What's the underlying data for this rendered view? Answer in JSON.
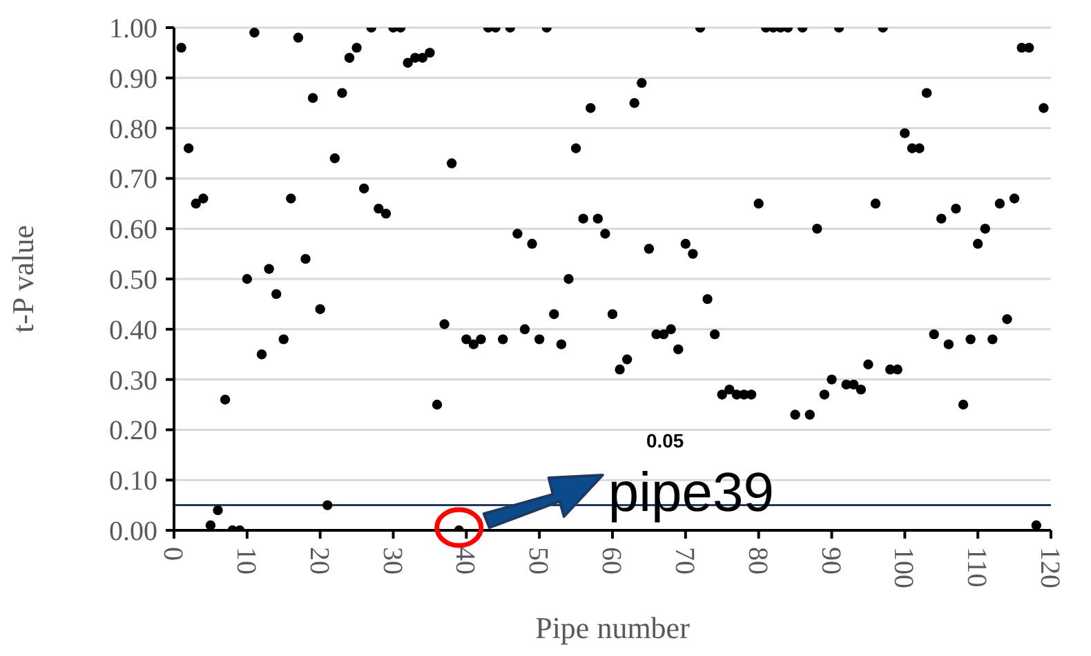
{
  "chart_data": {
    "type": "scatter",
    "xlabel": "Pipe number",
    "ylabel": "t-P value",
    "x": [
      1,
      2,
      3,
      4,
      5,
      6,
      7,
      8,
      9,
      10,
      11,
      12,
      13,
      14,
      15,
      16,
      17,
      18,
      19,
      20,
      21,
      22,
      23,
      24,
      25,
      26,
      27,
      28,
      29,
      30,
      31,
      32,
      33,
      34,
      35,
      36,
      37,
      38,
      39,
      40,
      41,
      42,
      43,
      44,
      45,
      46,
      47,
      48,
      49,
      50,
      51,
      52,
      53,
      54,
      55,
      56,
      57,
      58,
      59,
      60,
      61,
      62,
      63,
      64,
      65,
      66,
      67,
      68,
      69,
      70,
      71,
      72,
      73,
      74,
      75,
      76,
      77,
      78,
      79,
      80,
      81,
      82,
      83,
      84,
      85,
      86,
      87,
      88,
      89,
      90,
      91,
      92,
      93,
      94,
      95,
      96,
      97,
      98,
      99,
      100,
      101,
      102,
      103,
      104,
      105,
      106,
      107,
      108,
      109,
      110,
      111,
      112,
      113,
      114,
      115,
      116,
      117,
      118,
      119
    ],
    "series": [
      {
        "color": "#000000",
        "values": [
          0.96,
          0.76,
          0.65,
          0.66,
          0.01,
          0.04,
          0.26,
          0.0,
          0.0,
          0.5,
          0.99,
          0.35,
          0.52,
          0.47,
          0.38,
          0.66,
          0.98,
          0.54,
          0.86,
          0.44,
          0.05,
          0.74,
          0.87,
          0.94,
          0.96,
          0.68,
          1.0,
          0.64,
          0.63,
          1.0,
          1.0,
          0.93,
          0.94,
          0.94,
          0.95,
          0.25,
          0.41,
          0.73,
          0.0,
          0.38,
          0.37,
          0.38,
          1.0,
          1.0,
          0.38,
          1.0,
          0.59,
          0.4,
          0.57,
          0.38,
          1.0,
          0.43,
          0.37,
          0.5,
          0.76,
          0.62,
          0.84,
          0.62,
          0.59,
          0.43,
          0.32,
          0.34,
          0.85,
          0.89,
          0.56,
          0.39,
          0.39,
          0.4,
          0.36,
          0.57,
          0.55,
          1.0,
          0.46,
          0.39,
          0.27,
          0.28,
          0.27,
          0.27,
          0.27,
          0.65,
          1.0,
          1.0,
          1.0,
          1.0,
          0.23,
          1.0,
          0.23,
          0.6,
          0.27,
          0.3,
          1.0,
          0.29,
          0.29,
          0.28,
          0.33,
          0.65,
          1.0,
          0.32,
          0.32,
          0.79,
          0.76,
          0.76,
          0.87,
          0.39,
          0.62,
          0.37,
          0.64,
          0.25,
          0.38,
          0.57,
          0.6,
          0.38,
          0.65,
          0.42,
          0.66,
          0.96,
          0.96,
          0.01,
          0.84
        ]
      }
    ],
    "xlim": [
      0,
      120
    ],
    "xticks": [
      0,
      10,
      20,
      30,
      40,
      50,
      60,
      70,
      80,
      90,
      100,
      110,
      120
    ],
    "ylim": [
      0,
      1
    ],
    "yticks": [
      {
        "value": 0,
        "label": "0.00"
      },
      {
        "value": 0.1,
        "label": "0.10"
      },
      {
        "value": 0.2,
        "label": "0.20"
      },
      {
        "value": 0.3,
        "label": "0.30"
      },
      {
        "value": 0.4,
        "label": "0.40"
      },
      {
        "value": 0.5,
        "label": "0.50"
      },
      {
        "value": 0.6,
        "label": "0.60"
      },
      {
        "value": 0.7,
        "label": "0.70"
      },
      {
        "value": 0.8,
        "label": "0.80"
      },
      {
        "value": 0.9,
        "label": "0.90"
      },
      {
        "value": 1,
        "label": "1.00"
      }
    ],
    "grid": "y",
    "marker": "circle",
    "ref_lines": [
      {
        "axis": "y",
        "value": 0.05,
        "label": "0.05",
        "color": "#1f3864"
      }
    ],
    "annotations": [
      {
        "text": "pipe39",
        "x": 39,
        "y": 0
      }
    ]
  }
}
